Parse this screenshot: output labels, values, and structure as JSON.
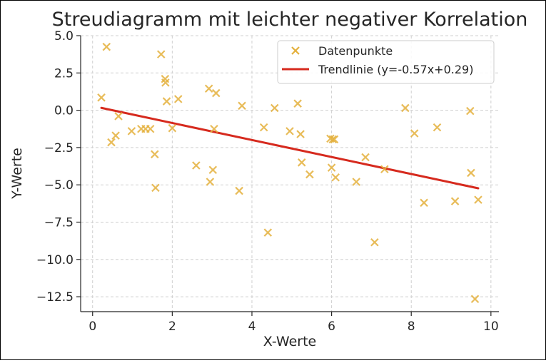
{
  "chart_data": {
    "type": "scatter",
    "title": "Streudiagramm mit leichter negativer Korrelation",
    "xlabel": "X-Werte",
    "ylabel": "Y-Werte",
    "xlim": [
      -0.3,
      10.2
    ],
    "ylim": [
      -13.5,
      5.0
    ],
    "xticks": [
      0,
      2,
      4,
      6,
      8,
      10
    ],
    "xtick_labels": [
      "0",
      "2",
      "4",
      "6",
      "8",
      "10"
    ],
    "yticks": [
      5.0,
      2.5,
      0.0,
      -2.5,
      -5.0,
      -7.5,
      -10.0,
      -12.5
    ],
    "ytick_labels": [
      "5.0",
      "2.5",
      "0.0",
      "−2.5",
      "−5.0",
      "−7.5",
      "−10.0",
      "−12.5"
    ],
    "grid": true,
    "legend_position": "top-right",
    "series": [
      {
        "name": "Datenpunkte",
        "kind": "scatter",
        "marker": "x",
        "color": "#e4b03c",
        "points": [
          [
            0.22,
            0.85
          ],
          [
            0.35,
            4.25
          ],
          [
            0.47,
            -2.15
          ],
          [
            0.58,
            -1.7
          ],
          [
            0.65,
            -0.4
          ],
          [
            0.98,
            -1.4
          ],
          [
            1.22,
            -1.25
          ],
          [
            1.33,
            -1.25
          ],
          [
            1.45,
            -1.25
          ],
          [
            1.56,
            -2.95
          ],
          [
            1.58,
            -5.2
          ],
          [
            1.72,
            3.75
          ],
          [
            1.82,
            2.1
          ],
          [
            1.83,
            1.85
          ],
          [
            1.86,
            0.6
          ],
          [
            2.0,
            -1.2
          ],
          [
            2.15,
            0.75
          ],
          [
            2.6,
            -3.7
          ],
          [
            2.92,
            1.45
          ],
          [
            2.95,
            -4.8
          ],
          [
            3.02,
            -4.0
          ],
          [
            3.05,
            -1.25
          ],
          [
            3.1,
            1.15
          ],
          [
            3.68,
            -5.4
          ],
          [
            3.75,
            0.3
          ],
          [
            4.3,
            -1.15
          ],
          [
            4.4,
            -8.2
          ],
          [
            4.57,
            0.15
          ],
          [
            4.95,
            -1.4
          ],
          [
            5.15,
            0.45
          ],
          [
            5.22,
            -1.6
          ],
          [
            5.25,
            -3.5
          ],
          [
            5.45,
            -4.3
          ],
          [
            5.97,
            -1.9
          ],
          [
            6.0,
            -3.85
          ],
          [
            6.03,
            -1.95
          ],
          [
            6.07,
            -1.95
          ],
          [
            6.1,
            -4.5
          ],
          [
            6.62,
            -4.8
          ],
          [
            6.85,
            -3.15
          ],
          [
            7.08,
            -8.85
          ],
          [
            7.33,
            -3.95
          ],
          [
            7.85,
            0.15
          ],
          [
            8.08,
            -1.55
          ],
          [
            8.32,
            -6.2
          ],
          [
            8.65,
            -1.15
          ],
          [
            9.1,
            -6.1
          ],
          [
            9.48,
            -0.05
          ],
          [
            9.5,
            -4.2
          ],
          [
            9.6,
            -12.65
          ],
          [
            9.68,
            -6.0
          ]
        ]
      },
      {
        "name": "Trendlinie (y=-0.57x+0.29)",
        "kind": "line",
        "color": "#d62a1e",
        "x": [
          0.22,
          9.68
        ],
        "y": [
          0.16,
          -5.23
        ]
      }
    ]
  }
}
